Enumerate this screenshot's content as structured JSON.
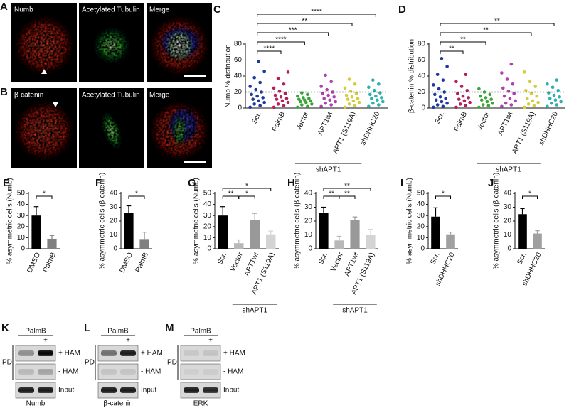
{
  "images": [
    {
      "panel": "A",
      "tiles": [
        "Numb",
        "Acetylated Tubulin",
        "Merge"
      ]
    },
    {
      "panel": "B",
      "tiles": [
        "β-catenin",
        "Acetylated Tubulin",
        "Merge"
      ]
    }
  ],
  "chart_data": [
    {
      "type": "strip",
      "panel": "C",
      "y_label": "Numb % distribution",
      "categories": [
        "Scr.",
        "PalmB",
        "Vector",
        "APT1wt",
        "APT1 (S119A)",
        "shDHHC20"
      ],
      "colors": [
        "#1f3a9e",
        "#b3205a",
        "#3aa63a",
        "#b040b0",
        "#d4cc3c",
        "#2fb0b0"
      ],
      "values": [
        [
          1,
          3,
          5,
          7,
          9,
          11,
          13,
          15,
          17,
          20,
          23,
          27,
          32,
          38,
          46,
          58
        ],
        [
          1,
          3,
          5,
          7,
          9,
          11,
          12,
          14,
          16,
          18,
          21,
          25,
          30,
          37,
          45
        ],
        [
          1,
          2,
          4,
          5,
          7,
          8,
          9,
          10,
          11,
          12,
          13,
          15,
          17,
          19
        ],
        [
          2,
          4,
          6,
          8,
          10,
          12,
          14,
          16,
          18,
          20,
          23,
          27,
          33,
          41
        ],
        [
          1,
          3,
          5,
          7,
          9,
          11,
          12,
          14,
          16,
          18,
          21,
          25,
          30,
          36
        ],
        [
          2,
          4,
          6,
          8,
          10,
          12,
          13,
          15,
          17,
          19,
          22,
          26,
          30,
          35
        ]
      ],
      "reference_line": 20,
      "ylim": [
        0,
        80
      ],
      "yticks": [
        0,
        20,
        40,
        60,
        80
      ],
      "comparisons": [
        {
          "between": [
            "Scr.",
            "PalmB"
          ],
          "label": "****"
        },
        {
          "between": [
            "Scr.",
            "Vector"
          ],
          "label": "****"
        },
        {
          "between": [
            "Scr.",
            "APT1wt"
          ],
          "label": "***"
        },
        {
          "between": [
            "Scr.",
            "APT1 (S119A)"
          ],
          "label": "**"
        },
        {
          "between": [
            "Scr.",
            "shDHHC20"
          ],
          "label": "****"
        }
      ],
      "group": {
        "label": "shAPT1",
        "from": "Vector",
        "to": "APT1 (S119A)"
      }
    },
    {
      "type": "strip",
      "panel": "D",
      "y_label": "β-catenin % distribution",
      "categories": [
        "Scr.",
        "PalmB",
        "Vector",
        "APT1wt",
        "APT1 (S119A)",
        "shDHHC20"
      ],
      "colors": [
        "#1f3a9e",
        "#b3205a",
        "#3aa63a",
        "#b040b0",
        "#d4cc3c",
        "#2fb0b0"
      ],
      "values": [
        [
          1,
          2,
          4,
          6,
          8,
          10,
          12,
          14,
          17,
          20,
          24,
          29,
          35,
          42,
          52,
          62
        ],
        [
          1,
          3,
          5,
          7,
          9,
          11,
          13,
          15,
          18,
          22,
          27,
          33,
          42
        ],
        [
          1,
          3,
          4,
          6,
          8,
          10,
          11,
          13,
          15,
          17,
          20,
          24
        ],
        [
          2,
          4,
          6,
          9,
          12,
          15,
          18,
          21,
          25,
          30,
          36,
          44,
          55
        ],
        [
          1,
          3,
          5,
          7,
          9,
          12,
          15,
          18,
          22,
          27,
          33,
          45
        ],
        [
          2,
          4,
          6,
          8,
          10,
          12,
          14,
          16,
          19,
          22,
          26,
          30,
          35
        ]
      ],
      "reference_line": 20,
      "ylim": [
        0,
        80
      ],
      "yticks": [
        0,
        20,
        40,
        60,
        80
      ],
      "comparisons": [
        {
          "between": [
            "Scr.",
            "PalmB"
          ],
          "label": "**"
        },
        {
          "between": [
            "Scr.",
            "Vector"
          ],
          "label": "**"
        },
        {
          "between": [
            "Scr.",
            "APT1 (S119A)"
          ],
          "label": "**"
        },
        {
          "between": [
            "Scr.",
            "shDHHC20"
          ],
          "label": "**"
        }
      ],
      "group": {
        "label": "shAPT1",
        "from": "Vector",
        "to": "APT1 (S119A)"
      }
    },
    {
      "type": "bar",
      "panel": "E",
      "y_label": "% asymmetric cells (Numb)",
      "categories": [
        "DMSO",
        "PalmB"
      ],
      "values": [
        30,
        9
      ],
      "errors": [
        8,
        3
      ],
      "colors": [
        "#000000",
        "#808080"
      ],
      "ylim": [
        0,
        50
      ],
      "yticks": [
        0,
        10,
        20,
        30,
        40,
        50
      ],
      "comparisons": [
        {
          "between": [
            "DMSO",
            "PalmB"
          ],
          "label": "*"
        }
      ]
    },
    {
      "type": "bar",
      "panel": "F",
      "y_label": "% asymmetric cells (β-catenin)",
      "categories": [
        "DMSO",
        "PalmB"
      ],
      "values": [
        26,
        7
      ],
      "errors": [
        5,
        5
      ],
      "colors": [
        "#000000",
        "#808080"
      ],
      "ylim": [
        0,
        40
      ],
      "yticks": [
        0,
        10,
        20,
        30,
        40
      ],
      "comparisons": [
        {
          "between": [
            "DMSO",
            "PalmB"
          ],
          "label": "*"
        }
      ]
    },
    {
      "type": "bar",
      "panel": "G",
      "y_label": "% asymmetric cells (Numb)",
      "categories": [
        "Scr.",
        "Vector",
        "APT1wt",
        "APT1 (S119A)"
      ],
      "values": [
        30,
        5,
        26,
        13
      ],
      "errors": [
        8,
        3,
        6,
        3
      ],
      "colors": [
        "#000000",
        "#b8b8b8",
        "#999999",
        "#d4d4d4"
      ],
      "ylim": [
        0,
        50
      ],
      "yticks": [
        0,
        10,
        20,
        30,
        40,
        50
      ],
      "comparisons": [
        {
          "between": [
            "Scr.",
            "Vector"
          ],
          "label": "**"
        },
        {
          "between": [
            "Vector",
            "APT1wt"
          ],
          "label": "*"
        },
        {
          "between": [
            "Scr.",
            "APT1 (S119A)"
          ],
          "label": "*"
        }
      ],
      "group": {
        "label": "shAPT1",
        "from": "Vector",
        "to": "APT1 (S119A)"
      }
    },
    {
      "type": "bar",
      "panel": "H",
      "y_label": "% asymmetric cells (β-catenin)",
      "categories": [
        "Scr.",
        "Vector",
        "APT1wt",
        "APT1 (S119A)"
      ],
      "values": [
        26,
        6,
        21,
        10
      ],
      "errors": [
        4,
        3,
        2,
        4
      ],
      "colors": [
        "#000000",
        "#b8b8b8",
        "#999999",
        "#d4d4d4"
      ],
      "ylim": [
        0,
        40
      ],
      "yticks": [
        0,
        10,
        20,
        30,
        40
      ],
      "comparisons": [
        {
          "between": [
            "Scr.",
            "Vector"
          ],
          "label": "**"
        },
        {
          "between": [
            "Vector",
            "APT1wt"
          ],
          "label": "**"
        },
        {
          "between": [
            "Scr.",
            "APT1 (S119A)"
          ],
          "label": "**"
        }
      ],
      "group": {
        "label": "shAPT1",
        "from": "Vector",
        "to": "APT1 (S119A)"
      }
    },
    {
      "type": "bar",
      "panel": "I",
      "y_label": "% asymmetric cells (Numb)",
      "categories": [
        "Scr.",
        "shDHHC20"
      ],
      "values": [
        29,
        13
      ],
      "errors": [
        8,
        2
      ],
      "colors": [
        "#000000",
        "#a0a0a0"
      ],
      "ylim": [
        0,
        50
      ],
      "yticks": [
        0,
        10,
        20,
        30,
        40,
        50
      ],
      "comparisons": [
        {
          "between": [
            "Scr.",
            "shDHHC20"
          ],
          "label": "*"
        }
      ]
    },
    {
      "type": "bar",
      "panel": "J",
      "y_label": "% asymmetric cells (β-catenin)",
      "categories": [
        "Scr.",
        "shDHHC20"
      ],
      "values": [
        25,
        11
      ],
      "errors": [
        4,
        2
      ],
      "colors": [
        "#000000",
        "#a0a0a0"
      ],
      "ylim": [
        0,
        40
      ],
      "yticks": [
        0,
        10,
        20,
        30,
        40
      ],
      "comparisons": [
        {
          "between": [
            "Scr.",
            "shDHHC20"
          ],
          "label": "*"
        }
      ]
    }
  ],
  "blots": [
    {
      "panel": "K",
      "treatment": "PalmB",
      "lanes": [
        "-",
        "+"
      ],
      "pulldown": "PD",
      "rows": [
        "+ HAM",
        "- HAM",
        "Input"
      ],
      "protein": "Numb"
    },
    {
      "panel": "L",
      "treatment": "PalmB",
      "lanes": [
        "-",
        "+"
      ],
      "pulldown": "PD",
      "rows": [
        "+ HAM",
        "- HAM",
        "Input"
      ],
      "protein": "β-catenin"
    },
    {
      "panel": "M",
      "treatment": "PalmB",
      "lanes": [
        "-",
        "+"
      ],
      "pulldown": "PD",
      "rows": [
        "+ HAM",
        "- HAM",
        "Input"
      ],
      "protein": "ERK"
    }
  ]
}
